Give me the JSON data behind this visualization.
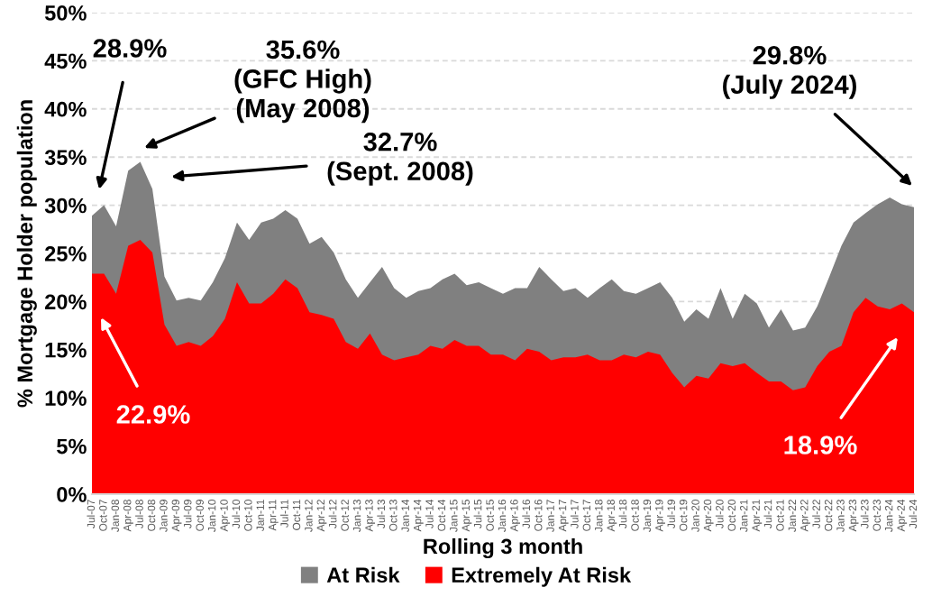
{
  "chart_data": {
    "type": "area",
    "xlabel": "Rolling 3 month",
    "ylabel": "% Mortgage Holder population",
    "categories": [
      "Jul-07",
      "Oct-07",
      "Jan-08",
      "Apr-08",
      "Jul-08",
      "Oct-08",
      "Jan-09",
      "Apr-09",
      "Jul-09",
      "Oct-09",
      "Jan-10",
      "Apr-10",
      "Jul-10",
      "Oct-10",
      "Jan-11",
      "Apr-11",
      "Jul-11",
      "Oct-11",
      "Jan-12",
      "Apr-12",
      "Jul-12",
      "Oct-12",
      "Jan-13",
      "Apr-13",
      "Jul-13",
      "Oct-13",
      "Jan-14",
      "Apr-14",
      "Jul-14",
      "Oct-14",
      "Jan-15",
      "Apr-15",
      "Jul-15",
      "Oct-15",
      "Jan-16",
      "Apr-16",
      "Jul-16",
      "Oct-16",
      "Jan-17",
      "Apr-17",
      "Jul-17",
      "Oct-17",
      "Jan-18",
      "Apr-18",
      "Jul-18",
      "Oct-18",
      "Jan-19",
      "Apr-19",
      "Jul-19",
      "Oct-19",
      "Jan-20",
      "Apr-20",
      "Jul-20",
      "Oct-20",
      "Jan-21",
      "Apr-21",
      "Jul-21",
      "Oct-21",
      "Jan-22",
      "Apr-22",
      "Jul-22",
      "Oct-22",
      "Jan-23",
      "Apr-23",
      "Jul-23",
      "Oct-23",
      "Jan-24",
      "Apr-24",
      "Jul-24"
    ],
    "series": [
      {
        "name": "At Risk",
        "color": "#808080",
        "values": [
          28.9,
          30.0,
          27.8,
          33.6,
          34.5,
          31.7,
          22.6,
          20.1,
          20.4,
          20.1,
          22.0,
          24.5,
          28.2,
          26.4,
          28.2,
          28.6,
          29.5,
          28.6,
          26.0,
          26.7,
          25.1,
          22.3,
          20.4,
          22.0,
          23.6,
          21.4,
          20.4,
          21.1,
          21.4,
          22.3,
          22.9,
          21.7,
          22.0,
          21.4,
          20.8,
          21.4,
          21.4,
          23.6,
          22.3,
          21.1,
          21.4,
          20.4,
          21.4,
          22.3,
          21.1,
          20.8,
          21.4,
          22.0,
          20.4,
          17.9,
          19.2,
          18.2,
          21.4,
          18.2,
          20.8,
          19.8,
          17.3,
          19.2,
          17.0,
          17.3,
          19.5,
          22.6,
          25.8,
          28.2,
          29.2,
          30.1,
          30.8,
          30.1,
          29.8
        ]
      },
      {
        "name": "Extremely At Risk",
        "color": "#ff0000",
        "values": [
          22.9,
          22.9,
          20.8,
          25.8,
          26.4,
          25.1,
          17.6,
          15.4,
          15.8,
          15.4,
          16.4,
          18.2,
          22.0,
          19.8,
          19.8,
          20.8,
          22.3,
          21.4,
          18.9,
          18.6,
          18.2,
          15.8,
          15.1,
          16.7,
          14.5,
          13.9,
          14.2,
          14.5,
          15.4,
          15.1,
          16.0,
          15.4,
          15.4,
          14.5,
          14.5,
          13.9,
          15.1,
          14.8,
          13.9,
          14.2,
          14.2,
          14.5,
          13.9,
          13.9,
          14.5,
          14.2,
          14.8,
          14.5,
          12.6,
          11.1,
          12.3,
          12.0,
          13.6,
          13.3,
          13.6,
          12.6,
          11.7,
          11.7,
          10.8,
          11.1,
          13.3,
          14.8,
          15.4,
          18.9,
          20.4,
          19.5,
          19.2,
          19.8,
          18.9
        ]
      }
    ],
    "ylim": [
      0,
      50
    ],
    "yticks": [
      {
        "value": 0,
        "label": "0%"
      },
      {
        "value": 5,
        "label": "5%"
      },
      {
        "value": 10,
        "label": "10%"
      },
      {
        "value": 15,
        "label": "15%"
      },
      {
        "value": 20,
        "label": "20%"
      },
      {
        "value": 25,
        "label": "25%"
      },
      {
        "value": 30,
        "label": "30%"
      },
      {
        "value": 35,
        "label": "35%"
      },
      {
        "value": 40,
        "label": "40%"
      },
      {
        "value": 45,
        "label": "45%"
      },
      {
        "value": 50,
        "label": "50%"
      }
    ],
    "grid": "y",
    "legend": "bottom",
    "annotations": [
      "28.9%",
      "35.6%\n(GFC High)\n(May 2008)",
      "32.7%\n(Sept. 2008)",
      "29.8%\n(July 2024)",
      "22.9%",
      "18.9%"
    ]
  }
}
